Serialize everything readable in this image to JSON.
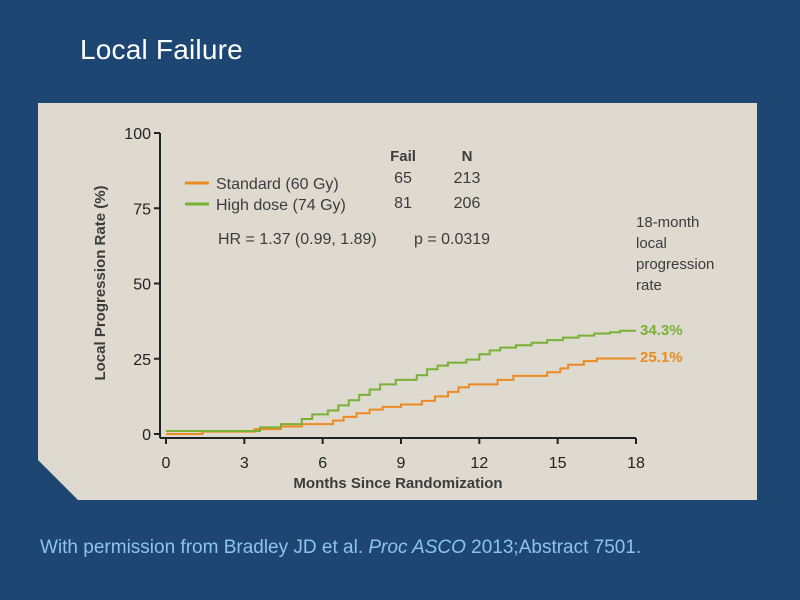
{
  "slide": {
    "title": "Local Failure"
  },
  "citation": {
    "pre": "With permission from Bradley JD et al. ",
    "journal": "Proc ASCO",
    "post": " 2013;Abstract 7501."
  },
  "colors": {
    "background": "#1d4673",
    "panel": "#dedad0",
    "standard": "#ec8a22",
    "high_dose": "#78b135",
    "axis": "#222222",
    "text": "#3c3c3c"
  },
  "chart_data": {
    "type": "line",
    "step": true,
    "title": "",
    "xlabel": "Months Since Randomization",
    "ylabel": "Local Progression Rate (%)",
    "xlim": [
      0,
      18
    ],
    "ylim": [
      0,
      100
    ],
    "xticks": [
      "0",
      "3",
      "6",
      "9",
      "12",
      "15",
      "18"
    ],
    "yticks": [
      "0",
      "25",
      "50",
      "75",
      "100"
    ],
    "grid": false,
    "legend_position": "top-left",
    "table_headers": [
      "Fail",
      "N"
    ],
    "series": [
      {
        "name": "Standard (60 Gy)",
        "color": "#ec8a22",
        "fail": "65",
        "n": "213",
        "end_label": "25.1%",
        "x": [
          0,
          1.4,
          3.4,
          4.4,
          5.2,
          6.4,
          6.8,
          7.3,
          7.8,
          8.3,
          9.0,
          9.8,
          10.3,
          10.8,
          11.2,
          11.6,
          12.7,
          13.3,
          14.6,
          15.1,
          15.4,
          16.0,
          16.5,
          18.0
        ],
        "y": [
          0,
          0.8,
          1.6,
          2.5,
          3.3,
          4.5,
          5.7,
          6.9,
          8.1,
          9.0,
          9.8,
          11.0,
          12.5,
          14.0,
          15.5,
          16.5,
          18.0,
          19.3,
          20.5,
          21.8,
          23.0,
          24.2,
          25.1,
          25.1
        ]
      },
      {
        "name": "High dose (74 Gy)",
        "color": "#78b135",
        "fail": "81",
        "n": "206",
        "end_label": "34.3%",
        "x": [
          0,
          3.6,
          4.4,
          5.2,
          5.6,
          6.2,
          6.6,
          7.0,
          7.4,
          7.8,
          8.2,
          8.8,
          9.6,
          10.0,
          10.4,
          10.8,
          11.5,
          12.0,
          12.4,
          12.8,
          13.4,
          14.0,
          14.6,
          15.2,
          15.8,
          16.4,
          17.0,
          17.4,
          18.0
        ],
        "y": [
          1.0,
          2.2,
          3.3,
          5.0,
          6.5,
          7.8,
          9.5,
          11.2,
          13.0,
          14.8,
          16.5,
          18.0,
          19.5,
          21.5,
          22.7,
          23.7,
          24.7,
          26.5,
          27.8,
          28.7,
          29.5,
          30.3,
          31.2,
          32.0,
          32.7,
          33.4,
          33.8,
          34.3,
          34.3
        ]
      }
    ],
    "annotations": {
      "hr_text": "HR = 1.37 (0.99, 1.89)",
      "p_text": "p = 0.0319",
      "side_note_lines": [
        "18-month",
        "local",
        "progression",
        "rate"
      ]
    }
  }
}
